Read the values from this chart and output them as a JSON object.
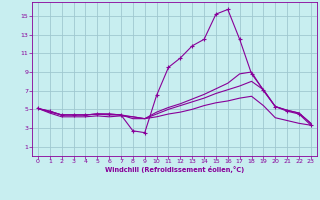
{
  "xlabel": "Windchill (Refroidissement éolien,°C)",
  "background_color": "#c8eef0",
  "grid_color": "#a0c8d0",
  "line_color": "#880099",
  "xlim": [
    -0.5,
    23.5
  ],
  "ylim": [
    0,
    16.5
  ],
  "xticks": [
    0,
    1,
    2,
    3,
    4,
    5,
    6,
    7,
    8,
    9,
    10,
    11,
    12,
    13,
    14,
    15,
    16,
    17,
    18,
    19,
    20,
    21,
    22,
    23
  ],
  "yticks": [
    1,
    3,
    5,
    7,
    9,
    11,
    13,
    15
  ],
  "line1_x": [
    0,
    1,
    2,
    3,
    4,
    5,
    6,
    7,
    8,
    9,
    10,
    11,
    12,
    13,
    14,
    15,
    16,
    17,
    18,
    19,
    20,
    21,
    22,
    23
  ],
  "line1_y": [
    5.1,
    4.8,
    4.4,
    4.4,
    4.4,
    4.5,
    4.5,
    4.4,
    2.7,
    2.5,
    6.5,
    9.5,
    10.5,
    11.8,
    12.5,
    15.2,
    15.7,
    12.5,
    8.8,
    7.1,
    5.3,
    4.8,
    4.5,
    3.3
  ],
  "line2_x": [
    0,
    1,
    2,
    3,
    4,
    5,
    6,
    7,
    8,
    9,
    10,
    11,
    12,
    13,
    14,
    15,
    16,
    17,
    18,
    19,
    20,
    21,
    22,
    23
  ],
  "line2_y": [
    5.1,
    4.8,
    4.4,
    4.4,
    4.4,
    4.5,
    4.5,
    4.4,
    4.0,
    4.0,
    4.5,
    5.0,
    5.4,
    5.8,
    6.2,
    6.7,
    7.1,
    7.5,
    8.0,
    7.1,
    5.3,
    4.9,
    4.6,
    3.5
  ],
  "line3_x": [
    0,
    1,
    2,
    3,
    4,
    5,
    6,
    7,
    8,
    9,
    10,
    11,
    12,
    13,
    14,
    15,
    16,
    17,
    18,
    19,
    20,
    21,
    22,
    23
  ],
  "line3_y": [
    5.1,
    4.7,
    4.4,
    4.4,
    4.4,
    4.5,
    4.4,
    4.4,
    4.2,
    4.0,
    4.7,
    5.2,
    5.6,
    6.1,
    6.6,
    7.2,
    7.8,
    8.8,
    9.0,
    7.0,
    5.3,
    4.9,
    4.6,
    3.5
  ],
  "line4_x": [
    0,
    1,
    2,
    3,
    4,
    5,
    6,
    7,
    8,
    9,
    10,
    11,
    12,
    13,
    14,
    15,
    16,
    17,
    18,
    19,
    20,
    21,
    22,
    23
  ],
  "line4_y": [
    5.1,
    4.6,
    4.2,
    4.2,
    4.2,
    4.3,
    4.2,
    4.3,
    4.2,
    4.0,
    4.2,
    4.5,
    4.7,
    5.0,
    5.4,
    5.7,
    5.9,
    6.2,
    6.4,
    5.4,
    4.1,
    3.8,
    3.5,
    3.3
  ]
}
